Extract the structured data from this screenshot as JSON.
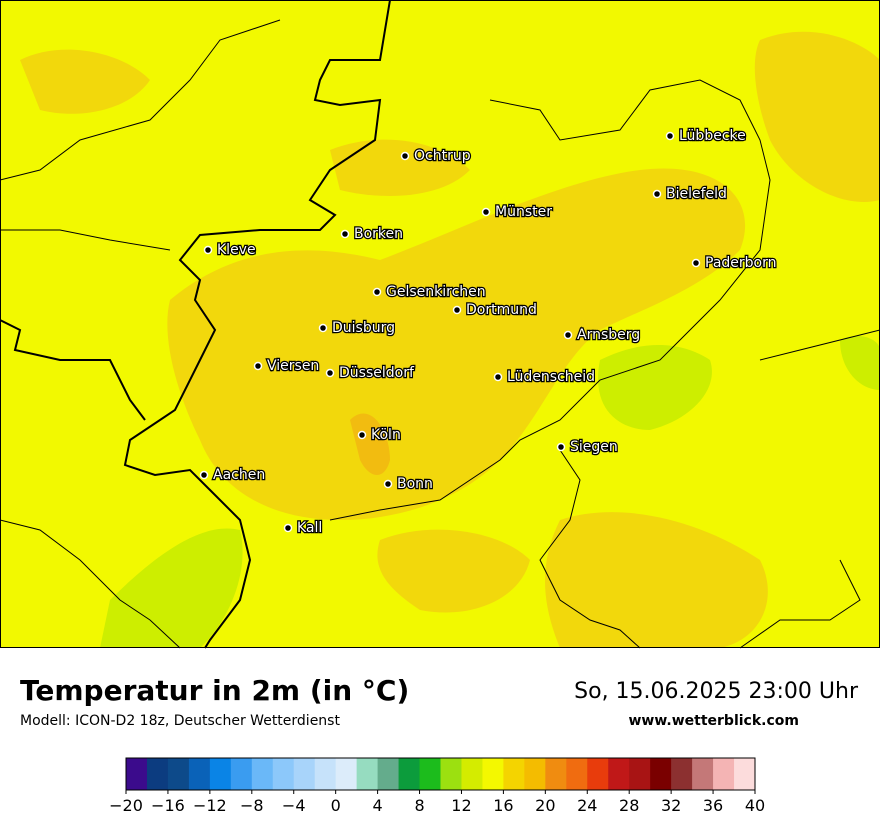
{
  "header": {
    "title": "Temperatur in 2m (in °C)",
    "subtitle": "Modell: ICON-D2 18z, Deutscher Wetterdienst",
    "date": "So, 15.06.2025 23:00 Uhr",
    "website": "www.wetterblick.com"
  },
  "cities": [
    "Lübbecke",
    "Ochtrup",
    "Bielefeld",
    "Münster",
    "Borken",
    "Kleve",
    "Paderborn",
    "Gelsenkirchen",
    "Dortmund",
    "Duisburg",
    "Arnsberg",
    "Viersen",
    "Düsseldorf",
    "Lüdenscheid",
    "Köln",
    "Siegen",
    "Aachen",
    "Bonn",
    "Kall"
  ],
  "colorbar": {
    "range": [
      -20,
      40
    ],
    "colors": [
      "#3b0b8c",
      "#0c3c80",
      "#0d4a8a",
      "#0a62b8",
      "#0a84e6",
      "#3a9cf0",
      "#6ab8f8",
      "#8cc8fa",
      "#a8d4fa",
      "#c6e2fa",
      "#dcecfa",
      "#96dcc0",
      "#64ac8c",
      "#0c9c3c",
      "#1cbc1c",
      "#9ce010",
      "#d4ec00",
      "#f4f800",
      "#f4d400",
      "#f4bc00",
      "#f08c10",
      "#f06c10",
      "#e83c0c",
      "#c01818",
      "#a81414",
      "#7a0000",
      "#8c3030",
      "#c47878",
      "#f4b4b4",
      "#fcdcdc"
    ],
    "ticks": [
      {
        "value": -20,
        "label": "−20"
      },
      {
        "value": -16,
        "label": "−16"
      },
      {
        "value": -12,
        "label": "−12"
      },
      {
        "value": -8,
        "label": "−8"
      },
      {
        "value": -4,
        "label": "−4"
      },
      0,
      4,
      8,
      12,
      16,
      20,
      24,
      28,
      32,
      36,
      40
    ]
  }
}
